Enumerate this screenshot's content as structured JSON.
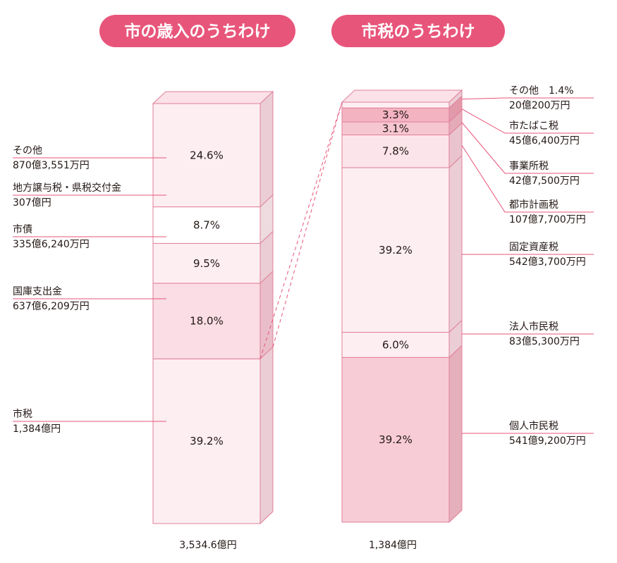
{
  "chart_data": [
    {
      "type": "stacked-bar",
      "title": "市の歳入のうちわけ",
      "total_label": "3,534.6億円",
      "segments": [
        {
          "pct": 24.6,
          "pct_label": "24.6%",
          "name": "その他",
          "amount": "870億3,551万円",
          "color": "#fdeef2"
        },
        {
          "pct": 8.7,
          "pct_label": "8.7%",
          "name": "地方譲与税・県税交付金",
          "amount": "307億円",
          "color": "#ffffff"
        },
        {
          "pct": 9.5,
          "pct_label": "9.5%",
          "name": "市債",
          "amount": "335億6,240万円",
          "color": "#fdeef2"
        },
        {
          "pct": 18.0,
          "pct_label": "18.0%",
          "name": "国庫支出金",
          "amount": "637億6,209万円",
          "color": "#fadde5"
        },
        {
          "pct": 39.2,
          "pct_label": "39.2%",
          "name": "市税",
          "amount": "1,384億円",
          "color": "#fdeef2"
        }
      ]
    },
    {
      "type": "stacked-bar",
      "title": "市税のうちわけ",
      "total_label": "1,384億円",
      "segments": [
        {
          "pct": 1.4,
          "pct_label": "",
          "name": "その他　1.4%",
          "amount": "20億200万円",
          "color": "#fdeef2"
        },
        {
          "pct": 3.3,
          "pct_label": "3.3%",
          "name": "市たばこ税",
          "amount": "45億6,400万円",
          "color": "#f3b3c1"
        },
        {
          "pct": 3.1,
          "pct_label": "3.1%",
          "name": "事業所税",
          "amount": "42億7,500万円",
          "color": "#f6c6d1"
        },
        {
          "pct": 7.8,
          "pct_label": "7.8%",
          "name": "都市計画税",
          "amount": "107億7,700万円",
          "color": "#fbe4ea"
        },
        {
          "pct": 39.2,
          "pct_label": "39.2%",
          "name": "固定資産税",
          "amount": "542億3,700万円",
          "color": "#fdeef2"
        },
        {
          "pct": 6.0,
          "pct_label": "6.0%",
          "name": "法人市民税",
          "amount": "83億5,300万円",
          "color": "#fdeef2"
        },
        {
          "pct": 39.2,
          "pct_label": "39.2%",
          "name": "個人市民税",
          "amount": "541億9,200万円",
          "color": "#f7ccd6"
        }
      ]
    }
  ],
  "colors": {
    "badge": "#e8557a",
    "line": "#e8557a",
    "edge": "#e0809a"
  }
}
